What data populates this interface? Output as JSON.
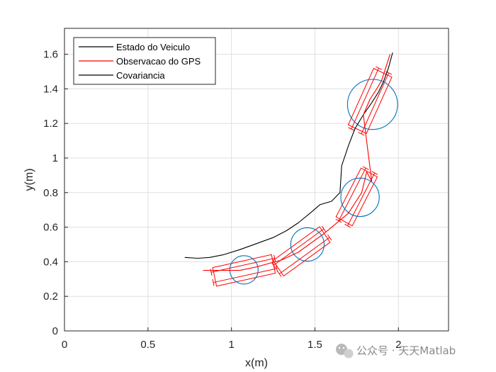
{
  "chart_data": {
    "type": "line",
    "xlabel": "x(m)",
    "ylabel": "y(m)",
    "xlim": [
      0,
      2.3
    ],
    "ylim": [
      0,
      1.75
    ],
    "xticks": [
      0,
      0.5,
      1,
      1.5,
      2
    ],
    "xtick_labels": [
      "0",
      "0.5",
      "1",
      "1.5",
      "2"
    ],
    "yticks": [
      0,
      0.2,
      0.4,
      0.6,
      0.8,
      1,
      1.2,
      1.4,
      1.6
    ],
    "ytick_labels": [
      "0",
      "0.2",
      "0.4",
      "0.6",
      "0.8",
      "1",
      "1.2",
      "1.4",
      "1.6"
    ],
    "grid": true,
    "legend_position": "top-left",
    "series": [
      {
        "name": "Estado do Veiculo",
        "color": "#000000",
        "x": [
          0.72,
          0.8,
          0.87,
          0.95,
          1.05,
          1.15,
          1.25,
          1.33,
          1.4,
          1.47,
          1.53,
          1.6,
          1.65,
          1.66,
          1.7,
          1.74,
          1.79,
          1.84,
          1.88,
          1.91,
          1.94,
          1.965
        ],
        "y": [
          0.425,
          0.42,
          0.425,
          0.44,
          0.47,
          0.505,
          0.54,
          0.58,
          0.625,
          0.68,
          0.73,
          0.75,
          0.8,
          0.955,
          1.07,
          1.17,
          1.25,
          1.32,
          1.38,
          1.44,
          1.52,
          1.61
        ]
      },
      {
        "name": "Observacao do GPS",
        "color": "#ff0000",
        "x": [
          0.83,
          0.95,
          1.05,
          1.15,
          1.3,
          1.4,
          1.55,
          1.7,
          1.78,
          1.81,
          1.84,
          1.79,
          1.83,
          1.87,
          1.9,
          1.95
        ],
        "y": [
          0.35,
          0.35,
          0.35,
          0.37,
          0.41,
          0.455,
          0.56,
          0.68,
          0.8,
          0.92,
          0.865,
          1.25,
          1.34,
          1.4,
          1.45,
          1.6
        ]
      }
    ],
    "legend_entries": [
      "Estado do Veiculo",
      "Observacao do GPS",
      "Covariancia"
    ],
    "covariance": {
      "name": "Covariancia",
      "color": "#0072bd",
      "circles": [
        {
          "cx": 1.075,
          "cy": 0.353,
          "r": 0.085
        },
        {
          "cx": 1.455,
          "cy": 0.5,
          "r": 0.1
        },
        {
          "cx": 1.77,
          "cy": 0.773,
          "r": 0.115
        },
        {
          "cx": 1.845,
          "cy": 1.31,
          "r": 0.15
        }
      ]
    },
    "observation_boxes": [
      {
        "cx": 1.075,
        "cy": 0.35,
        "len": 0.36,
        "wid": 0.11,
        "angle_deg": 12
      },
      {
        "cx": 1.42,
        "cy": 0.46,
        "len": 0.34,
        "wid": 0.11,
        "angle_deg": 35
      },
      {
        "cx": 1.75,
        "cy": 0.775,
        "len": 0.32,
        "wid": 0.11,
        "angle_deg": 62
      },
      {
        "cx": 1.83,
        "cy": 1.33,
        "len": 0.36,
        "wid": 0.12,
        "angle_deg": 65
      }
    ]
  },
  "watermark": {
    "icon": "wechat-icon",
    "text": "公众号 · 天天Matlab"
  }
}
